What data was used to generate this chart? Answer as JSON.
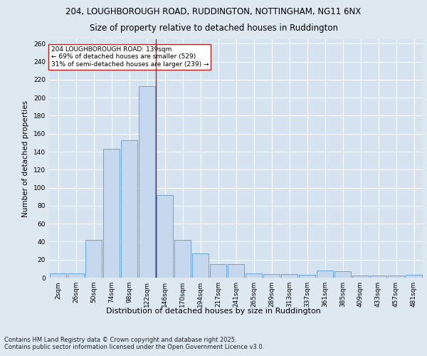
{
  "title1": "204, LOUGHBOROUGH ROAD, RUDDINGTON, NOTTINGHAM, NG11 6NX",
  "title2": "Size of property relative to detached houses in Ruddington",
  "xlabel": "Distribution of detached houses by size in Ruddington",
  "ylabel": "Number of detached properties",
  "categories": [
    "2sqm",
    "26sqm",
    "50sqm",
    "74sqm",
    "98sqm",
    "122sqm",
    "146sqm",
    "170sqm",
    "194sqm",
    "217sqm",
    "241sqm",
    "265sqm",
    "289sqm",
    "313sqm",
    "337sqm",
    "361sqm",
    "385sqm",
    "409sqm",
    "433sqm",
    "457sqm",
    "481sqm"
  ],
  "values": [
    5,
    5,
    42,
    143,
    153,
    213,
    92,
    42,
    27,
    15,
    15,
    5,
    4,
    4,
    3,
    8,
    7,
    2,
    2,
    2,
    3
  ],
  "bar_color": "#c5d8ed",
  "bar_edge_color": "#5b9bd5",
  "background_color": "#dde8f0",
  "plot_bg_color": "#d5e4f0",
  "grid_color": "#ffffff",
  "vline_x": 5.5,
  "vline_color": "#aa2222",
  "annotation_text": "204 LOUGHBOROUGH ROAD: 139sqm\n← 69% of detached houses are smaller (529)\n31% of semi-detached houses are larger (239) →",
  "annotation_box_color": "#ffffff",
  "annotation_box_edge": "#aa2222",
  "footnote": "Contains HM Land Registry data © Crown copyright and database right 2025.\nContains public sector information licensed under the Open Government Licence v3.0.",
  "ylim": [
    0,
    265
  ],
  "yticks": [
    0,
    20,
    40,
    60,
    80,
    100,
    120,
    140,
    160,
    180,
    200,
    220,
    240,
    260
  ],
  "title1_fontsize": 8.5,
  "title2_fontsize": 8.5,
  "tick_fontsize": 6.5,
  "ylabel_fontsize": 7.5,
  "xlabel_fontsize": 8,
  "footnote_fontsize": 6
}
